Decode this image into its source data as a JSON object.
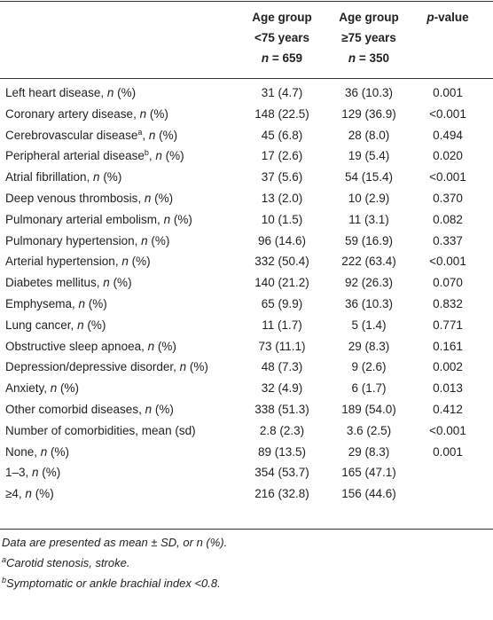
{
  "table": {
    "header": [
      [
        [
          {
            "t": "Age group"
          }
        ],
        [
          {
            "t": "<75 years"
          }
        ],
        [
          {
            "t": "n",
            "i": true
          },
          {
            "t": " = 659"
          }
        ]
      ],
      [
        [
          {
            "t": "Age group"
          }
        ],
        [
          {
            "t": "≥75 years"
          }
        ],
        [
          {
            "t": "n",
            "i": true
          },
          {
            "t": " = 350"
          }
        ]
      ],
      [
        [
          {
            "t": "p",
            "i": true
          },
          {
            "t": "-value"
          }
        ]
      ]
    ],
    "rows": [
      {
        "label": [
          {
            "t": "Left heart disease, "
          },
          {
            "t": "n",
            "i": true
          },
          {
            "t": " (%)"
          }
        ],
        "cells": [
          "31 (4.7)",
          "36 (10.3)",
          "0.001"
        ]
      },
      {
        "label": [
          {
            "t": "Coronary artery disease, "
          },
          {
            "t": "n",
            "i": true
          },
          {
            "t": " (%)"
          }
        ],
        "cells": [
          "148 (22.5)",
          "129 (36.9)",
          "<0.001"
        ]
      },
      {
        "label": [
          {
            "t": "Cerebrovascular disease"
          },
          {
            "t": "a",
            "sup": true
          },
          {
            "t": ", "
          },
          {
            "t": "n",
            "i": true
          },
          {
            "t": " (%)"
          }
        ],
        "cells": [
          "45 (6.8)",
          "28 (8.0)",
          "0.494"
        ]
      },
      {
        "label": [
          {
            "t": "Peripheral arterial disease"
          },
          {
            "t": "b",
            "sup": true
          },
          {
            "t": ", "
          },
          {
            "t": "n",
            "i": true
          },
          {
            "t": " (%)"
          }
        ],
        "cells": [
          "17 (2.6)",
          "19 (5.4)",
          "0.020"
        ]
      },
      {
        "label": [
          {
            "t": "Atrial fibrillation, "
          },
          {
            "t": "n",
            "i": true
          },
          {
            "t": " (%)"
          }
        ],
        "cells": [
          "37 (5.6)",
          "54 (15.4)",
          "<0.001"
        ]
      },
      {
        "label": [
          {
            "t": "Deep venous thrombosis, "
          },
          {
            "t": "n",
            "i": true
          },
          {
            "t": " (%)"
          }
        ],
        "cells": [
          "13 (2.0)",
          "10 (2.9)",
          "0.370"
        ]
      },
      {
        "label": [
          {
            "t": "Pulmonary arterial embolism, "
          },
          {
            "t": "n",
            "i": true
          },
          {
            "t": " (%)"
          }
        ],
        "cells": [
          "10 (1.5)",
          "11 (3.1)",
          "0.082"
        ]
      },
      {
        "label": [
          {
            "t": "Pulmonary hypertension, "
          },
          {
            "t": "n",
            "i": true
          },
          {
            "t": " (%)"
          }
        ],
        "cells": [
          "96 (14.6)",
          "59 (16.9)",
          "0.337"
        ]
      },
      {
        "label": [
          {
            "t": "Arterial hypertension, "
          },
          {
            "t": "n",
            "i": true
          },
          {
            "t": " (%)"
          }
        ],
        "cells": [
          "332 (50.4)",
          "222 (63.4)",
          "<0.001"
        ]
      },
      {
        "label": [
          {
            "t": "Diabetes mellitus, "
          },
          {
            "t": "n",
            "i": true
          },
          {
            "t": " (%)"
          }
        ],
        "cells": [
          "140 (21.2)",
          "92 (26.3)",
          "0.070"
        ]
      },
      {
        "label": [
          {
            "t": "Emphysema, "
          },
          {
            "t": "n",
            "i": true
          },
          {
            "t": " (%)"
          }
        ],
        "cells": [
          "65 (9.9)",
          "36 (10.3)",
          "0.832"
        ]
      },
      {
        "label": [
          {
            "t": "Lung cancer, "
          },
          {
            "t": "n",
            "i": true
          },
          {
            "t": " (%)"
          }
        ],
        "cells": [
          "11 (1.7)",
          "5 (1.4)",
          "0.771"
        ]
      },
      {
        "label": [
          {
            "t": "Obstructive sleep apnoea, "
          },
          {
            "t": "n",
            "i": true
          },
          {
            "t": " (%)"
          }
        ],
        "cells": [
          "73 (11.1)",
          "29 (8.3)",
          "0.161"
        ]
      },
      {
        "label": [
          {
            "t": "Depression/depressive disorder, "
          },
          {
            "t": "n",
            "i": true
          },
          {
            "t": " (%)"
          }
        ],
        "cells": [
          "48 (7.3)",
          "9 (2.6)",
          "0.002"
        ]
      },
      {
        "label": [
          {
            "t": "Anxiety, "
          },
          {
            "t": "n",
            "i": true
          },
          {
            "t": " (%)"
          }
        ],
        "cells": [
          "32 (4.9)",
          "6 (1.7)",
          "0.013"
        ]
      },
      {
        "label": [
          {
            "t": "Other comorbid diseases, "
          },
          {
            "t": "n",
            "i": true
          },
          {
            "t": " (%)"
          }
        ],
        "cells": [
          "338 (51.3)",
          "189 (54.0)",
          "0.412"
        ]
      },
      {
        "label": [
          {
            "t": "Number of comorbidities, mean (sd)"
          }
        ],
        "cells": [
          "2.8 (2.3)",
          "3.6 (2.5)",
          "<0.001"
        ]
      },
      {
        "label": [
          {
            "t": "None, "
          },
          {
            "t": "n",
            "i": true
          },
          {
            "t": " (%)"
          }
        ],
        "cells": [
          "89 (13.5)",
          "29 (8.3)",
          "0.001"
        ]
      },
      {
        "label": [
          {
            "t": "1–3, "
          },
          {
            "t": "n",
            "i": true
          },
          {
            "t": " (%)"
          }
        ],
        "cells": [
          "354 (53.7)",
          "165 (47.1)"
        ]
      },
      {
        "label": [
          {
            "t": "≥4, "
          },
          {
            "t": "n",
            "i": true
          },
          {
            "t": " (%)"
          }
        ],
        "cells": [
          "216 (32.8)",
          "156 (44.6)"
        ]
      }
    ],
    "footnotes": [
      [
        {
          "t": "Data are presented as mean ± SD, or n (%)."
        }
      ],
      [
        {
          "t": "a",
          "sup": true
        },
        {
          "t": "Carotid stenosis, stroke."
        }
      ],
      [
        {
          "t": "b",
          "sup": true
        },
        {
          "t": "Symptomatic or ankle brachial index <0.8."
        }
      ]
    ]
  }
}
